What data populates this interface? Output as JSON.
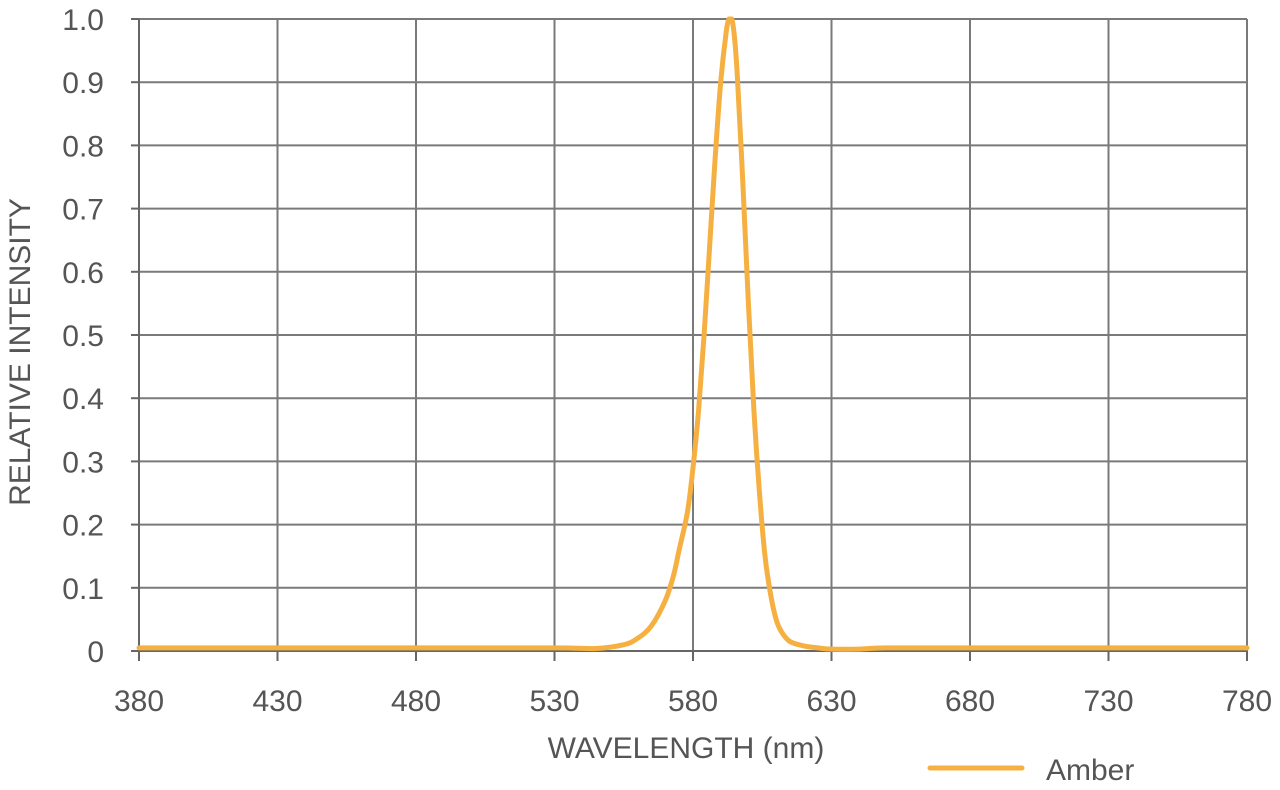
{
  "chart_data": {
    "type": "line",
    "title": "",
    "xlabel": "WAVELENGTH (nm)",
    "ylabel": "RELATIVE INTENSITY",
    "xlim": [
      380,
      780
    ],
    "ylim": [
      0,
      1.0
    ],
    "x_ticks": [
      "380",
      "430",
      "480",
      "530",
      "580",
      "630",
      "680",
      "730",
      "780"
    ],
    "y_ticks": [
      "0",
      "0.1",
      "0.2",
      "0.3",
      "0.4",
      "0.5",
      "0.6",
      "0.7",
      "0.8",
      "0.9",
      "1.0"
    ],
    "grid": true,
    "legend_position": "bottom-right",
    "series": [
      {
        "name": "Amber",
        "color": "#f5b041",
        "x": [
          380,
          430,
          480,
          530,
          545,
          555,
          560,
          565,
          570,
          573,
          575,
          578,
          580,
          582,
          584,
          586,
          588,
          590,
          592,
          593,
          594,
          595,
          596,
          598,
          600,
          602,
          604,
          606,
          608,
          610,
          612,
          615,
          620,
          625,
          630,
          640,
          650,
          680,
          730,
          780
        ],
        "y": [
          0.005,
          0.005,
          0.005,
          0.005,
          0.004,
          0.01,
          0.02,
          0.04,
          0.08,
          0.12,
          0.16,
          0.22,
          0.29,
          0.38,
          0.5,
          0.64,
          0.78,
          0.9,
          0.98,
          1.0,
          1.0,
          0.97,
          0.91,
          0.74,
          0.55,
          0.38,
          0.25,
          0.15,
          0.09,
          0.05,
          0.03,
          0.015,
          0.008,
          0.005,
          0.003,
          0.003,
          0.005,
          0.005,
          0.005,
          0.005
        ]
      }
    ]
  }
}
